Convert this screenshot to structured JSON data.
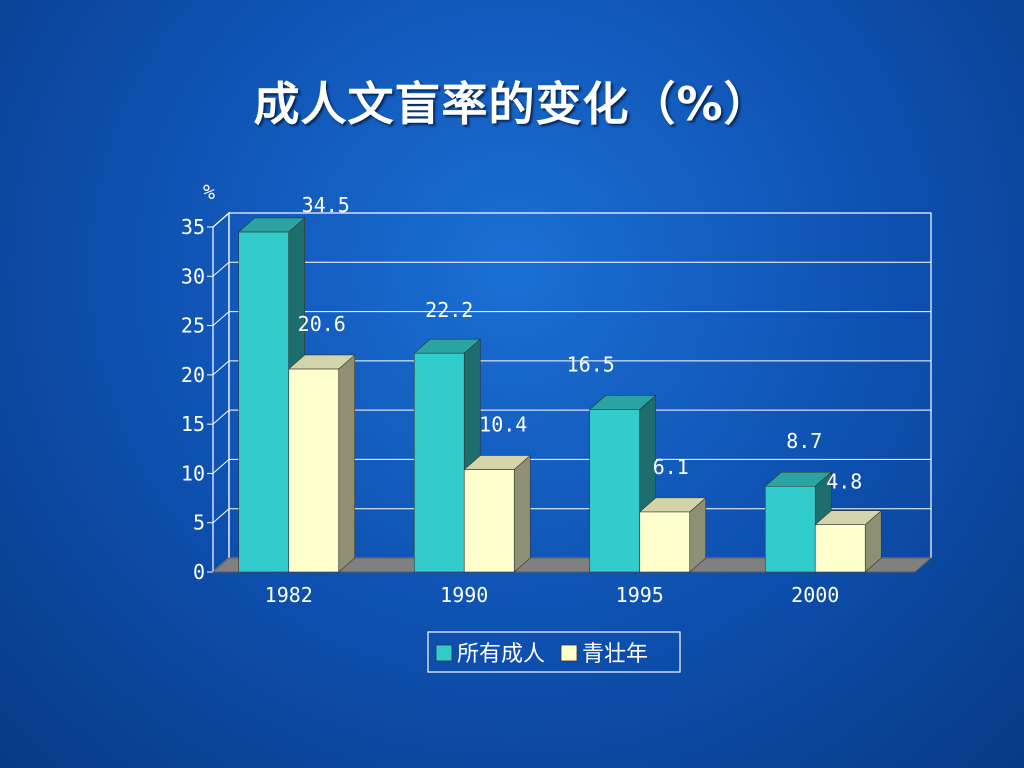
{
  "slide": {
    "title": "成人文盲率的变化（%）"
  },
  "colors": {
    "background": "#0d4fae",
    "series1_front": "#33cccc",
    "series1_side": "#1e6e6e",
    "series1_top": "#2aa3a3",
    "series2_front": "#ffffcc",
    "series2_side": "#8f8f73",
    "series2_top": "#d4d4aa",
    "floor": "#808080"
  },
  "chart_data": {
    "type": "bar",
    "variant": "3d-clustered-column",
    "ylabel": "%",
    "ylim": [
      0,
      35
    ],
    "yticks": [
      0,
      5,
      10,
      15,
      20,
      25,
      30,
      35
    ],
    "categories": [
      "1982",
      "1990",
      "1995",
      "2000"
    ],
    "series": [
      {
        "name": "所有成人",
        "values": [
          34.5,
          22.2,
          16.5,
          8.7
        ],
        "labels": [
          "34.5",
          "22.2",
          "16.5",
          "8.7"
        ]
      },
      {
        "name": "青壮年",
        "values": [
          20.6,
          10.4,
          6.1,
          4.8
        ],
        "labels": [
          "20.6",
          "10.4",
          "6.1",
          "4.8"
        ]
      }
    ],
    "grid": true,
    "legend": "bottom"
  }
}
